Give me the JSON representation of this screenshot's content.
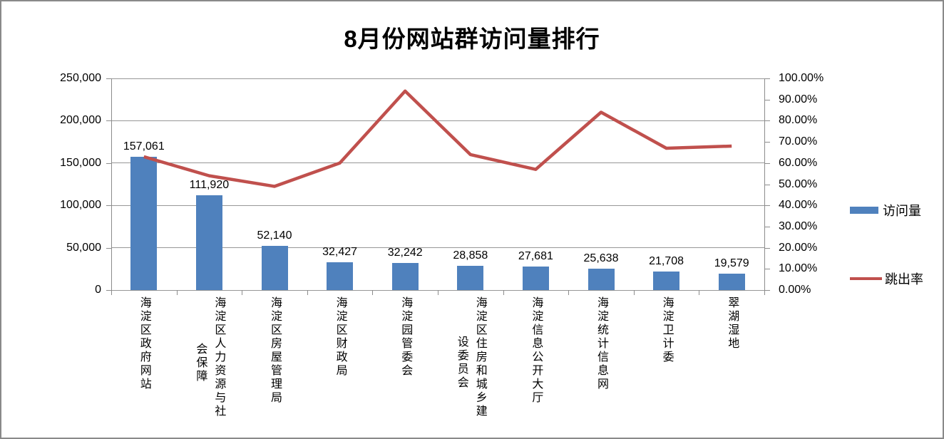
{
  "chart_data": {
    "type": "combo-bar-line",
    "title": "8月份网站群访问量排行",
    "categories": [
      "海淀区政府网站",
      "海淀区人力资源与社会保障",
      "海淀区房屋管理局",
      "海淀区财政局",
      "海淀园管委会",
      "海淀区住房和城乡建设委员会",
      "海淀信息公开大厅",
      "海淀统计信息网",
      "海淀卫计委",
      "翠湖湿地"
    ],
    "series": [
      {
        "name": "访问量",
        "type": "bar",
        "axis": "left",
        "color": "#4F81BD",
        "values": [
          157061,
          111920,
          52140,
          32427,
          32242,
          28858,
          27681,
          25638,
          21708,
          19579
        ],
        "data_labels": [
          "157,061",
          "111,920",
          "52,140",
          "32,427",
          "32,242",
          "28,858",
          "27,681",
          "25,638",
          "21,708",
          "19,579"
        ]
      },
      {
        "name": "跳出率",
        "type": "line",
        "axis": "right",
        "color": "#C0504D",
        "values_percent": [
          63,
          54,
          49,
          60,
          94,
          64,
          57,
          84,
          67,
          68
        ]
      }
    ],
    "left_axis": {
      "min": 0,
      "max": 250000,
      "tick_step": 50000,
      "tick_labels": [
        "0",
        "50,000",
        "100,000",
        "150,000",
        "200,000",
        "250,000"
      ]
    },
    "right_axis": {
      "min_percent": 0,
      "max_percent": 100,
      "tick_step_percent": 10,
      "tick_labels": [
        "0.00%",
        "10.00%",
        "20.00%",
        "30.00%",
        "40.00%",
        "50.00%",
        "60.00%",
        "70.00%",
        "80.00%",
        "90.00%",
        "100.00%"
      ]
    },
    "legend": {
      "position": "right",
      "items": [
        "访问量",
        "跳出率"
      ]
    },
    "grid": {
      "horizontal_lines_every_percent": 20,
      "color": "#979797"
    }
  }
}
